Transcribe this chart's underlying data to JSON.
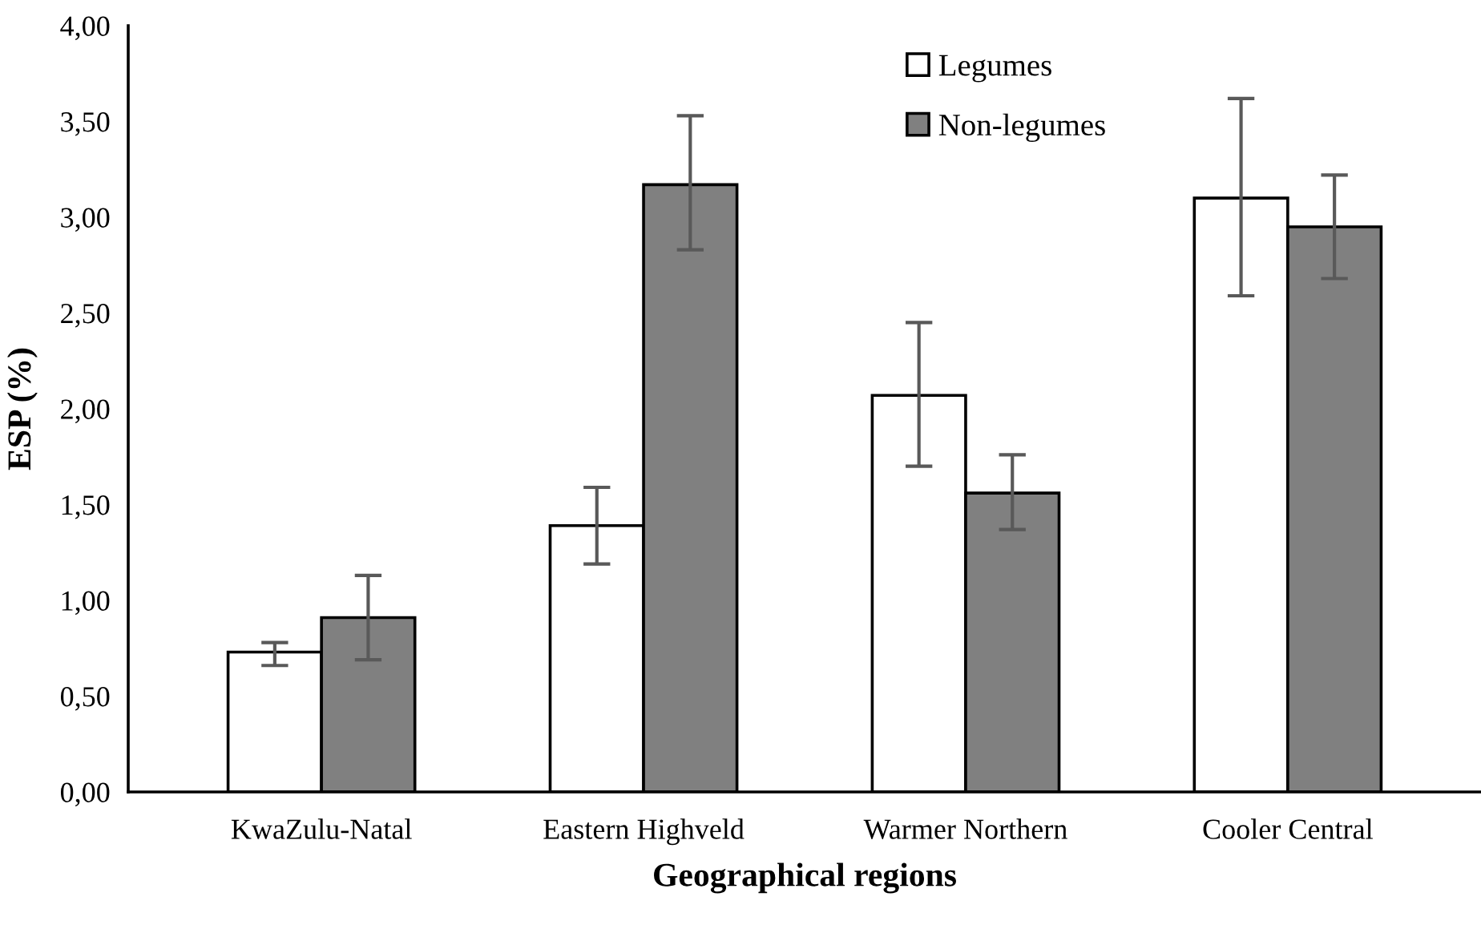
{
  "chart_data": {
    "type": "bar",
    "xlabel": "Geographical regions",
    "ylabel": "ESP (%)",
    "categories": [
      "KwaZulu-Natal",
      "Eastern Highveld",
      "Warmer Northern",
      "Cooler Central"
    ],
    "series": [
      {
        "name": "Legumes",
        "color": "#ffffff",
        "values": [
          0.73,
          1.39,
          2.07,
          3.1
        ],
        "errors": [
          [
            0.66,
            0.78
          ],
          [
            1.19,
            1.59
          ],
          [
            1.7,
            2.45
          ],
          [
            2.59,
            3.62
          ]
        ]
      },
      {
        "name": "Non-legumes",
        "color": "#808080",
        "values": [
          0.91,
          3.17,
          1.56,
          2.95
        ],
        "errors": [
          [
            0.69,
            1.13
          ],
          [
            2.83,
            3.53
          ],
          [
            1.37,
            1.76
          ],
          [
            2.68,
            3.22
          ]
        ]
      }
    ],
    "ylim": [
      0,
      4
    ],
    "yticks": [
      {
        "value": 0,
        "label": "0,00"
      },
      {
        "value": 0.5,
        "label": "0,50"
      },
      {
        "value": 1,
        "label": "1,00"
      },
      {
        "value": 1.5,
        "label": "1,50"
      },
      {
        "value": 2,
        "label": "2,00"
      },
      {
        "value": 2.5,
        "label": "2,50"
      },
      {
        "value": 3,
        "label": "3,00"
      },
      {
        "value": 3.5,
        "label": "3,50"
      },
      {
        "value": 4,
        "label": "4,00"
      }
    ],
    "grid": false,
    "legend": "top"
  }
}
